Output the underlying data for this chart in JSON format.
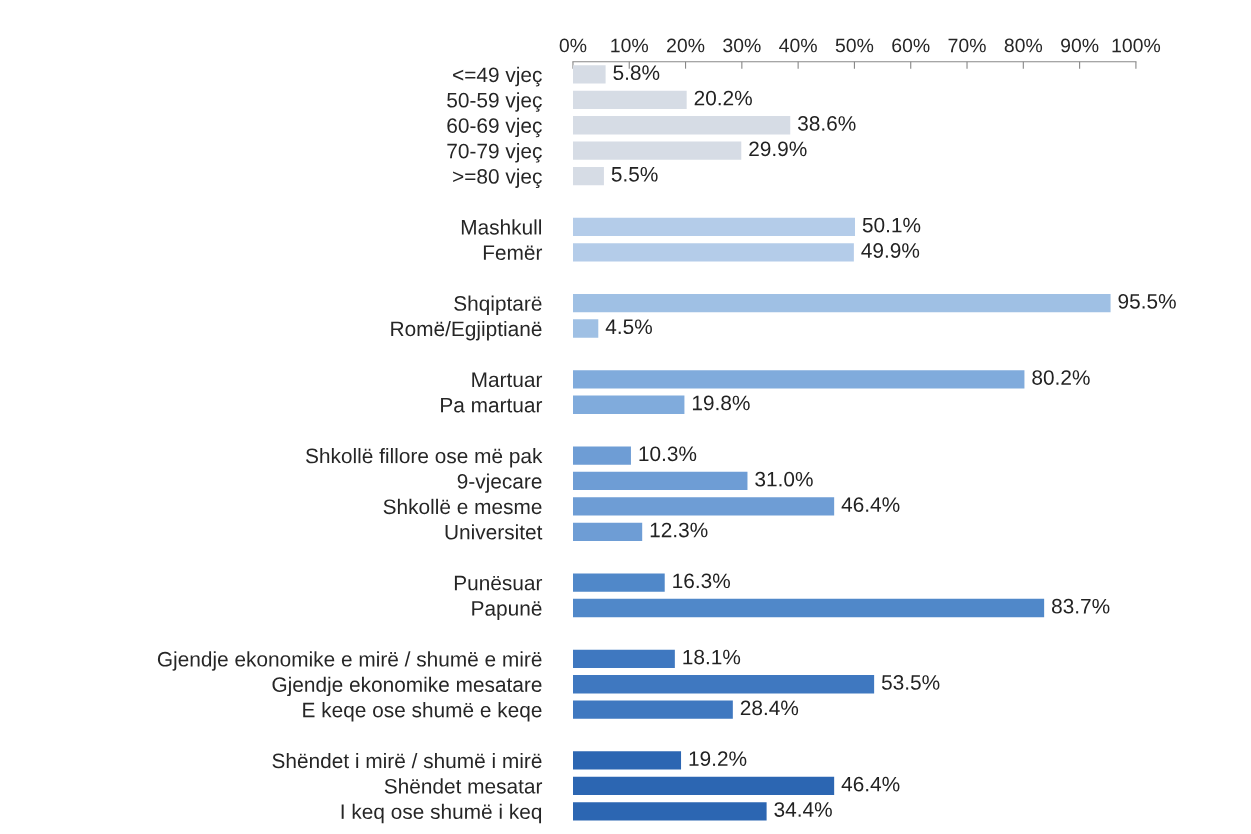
{
  "chart_data": {
    "type": "bar",
    "orientation": "horizontal",
    "categories": [
      "<=49 vjeç",
      "50-59 vjeç",
      "60-69 vjeç",
      "70-79 vjeç",
      ">=80 vjeç",
      null,
      "Mashkull",
      "Femër",
      null,
      "Shqiptarë",
      "Romë/Egjiptianë",
      null,
      "Martuar",
      "Pa martuar",
      null,
      "Shkollë fillore ose më pak",
      "9-vjecare",
      "Shkollë e mesme",
      "Universitet",
      null,
      "Punësuar",
      "Papunë",
      null,
      "Gjendje ekonomike e mirë / shumë e mirë",
      "Gjendje ekonomike mesatare",
      "E keqe ose shumë e keqe",
      null,
      "Shëndet i mirë / shumë i mirë",
      "Shëndet mesatar",
      "I keq ose shumë i keq"
    ],
    "values": [
      5.8,
      20.2,
      38.6,
      29.9,
      5.5,
      null,
      50.1,
      49.9,
      null,
      95.5,
      4.5,
      null,
      80.2,
      19.8,
      null,
      10.3,
      31.0,
      46.4,
      12.3,
      null,
      16.3,
      83.7,
      null,
      18.1,
      53.5,
      28.4,
      null,
      19.2,
      46.4,
      34.4
    ],
    "value_labels": [
      "5.8%",
      "20.2%",
      "38.6%",
      "29.9%",
      "5.5%",
      null,
      "50.1%",
      "49.9%",
      null,
      "95.5%",
      "4.5%",
      null,
      "80.2%",
      "19.8%",
      null,
      "10.3%",
      "31.0%",
      "46.4%",
      "12.3%",
      null,
      "16.3%",
      "83.7%",
      null,
      "18.1%",
      "53.5%",
      "28.4%",
      null,
      "19.2%",
      "46.4%",
      "34.4%"
    ],
    "colors": [
      "#d6dce5",
      "#d6dce5",
      "#d6dce5",
      "#d6dce5",
      "#d6dce5",
      null,
      "#b4cce9",
      "#b4cce9",
      null,
      "#9fc0e4",
      "#9fc0e4",
      null,
      "#80abdc",
      "#80abdc",
      null,
      "#6e9dd5",
      "#6e9dd5",
      "#6e9dd5",
      "#6e9dd5",
      null,
      "#5088c9",
      "#5088c9",
      null,
      "#3f78c0",
      "#3f78c0",
      "#3f78c0",
      null,
      "#2c66b2",
      "#2c66b2",
      "#2c66b2"
    ],
    "xlim": [
      0,
      100
    ],
    "xticks": [
      {
        "value": 0,
        "label": "0%"
      },
      {
        "value": 10,
        "label": "10%"
      },
      {
        "value": 20,
        "label": "20%"
      },
      {
        "value": 30,
        "label": "30%"
      },
      {
        "value": 40,
        "label": "40%"
      },
      {
        "value": 50,
        "label": "50%"
      },
      {
        "value": 60,
        "label": "60%"
      },
      {
        "value": 70,
        "label": "70%"
      },
      {
        "value": 80,
        "label": "80%"
      },
      {
        "value": 90,
        "label": "90%"
      },
      {
        "value": 100,
        "label": "100%"
      }
    ]
  }
}
